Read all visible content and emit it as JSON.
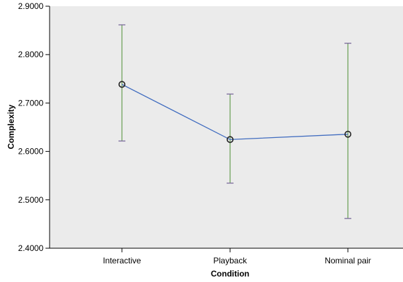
{
  "colors": {
    "plot_background": "#ebebeb",
    "axis": "#000000",
    "line": "#3f6bbf",
    "error_bar": "#6fa35b",
    "error_cap": "#7a6a9b",
    "marker_edge": "#222222"
  },
  "chart_data": {
    "type": "line",
    "title": "",
    "xlabel": "Condition",
    "ylabel": "Complexity",
    "categories": [
      "Interactive",
      "Playback",
      "Nominal pair"
    ],
    "series": [
      {
        "values": [
          2.7385,
          2.6245,
          2.6355
        ],
        "error_low": [
          2.6215,
          2.5345,
          2.4615
        ],
        "error_high": [
          2.8615,
          2.7185,
          2.8235
        ]
      }
    ],
    "ylim": [
      2.4,
      2.9
    ],
    "yticks": [
      "2.4000",
      "2.5000",
      "2.6000",
      "2.7000",
      "2.8000",
      "2.9000"
    ],
    "grid": false,
    "legend": "none"
  }
}
